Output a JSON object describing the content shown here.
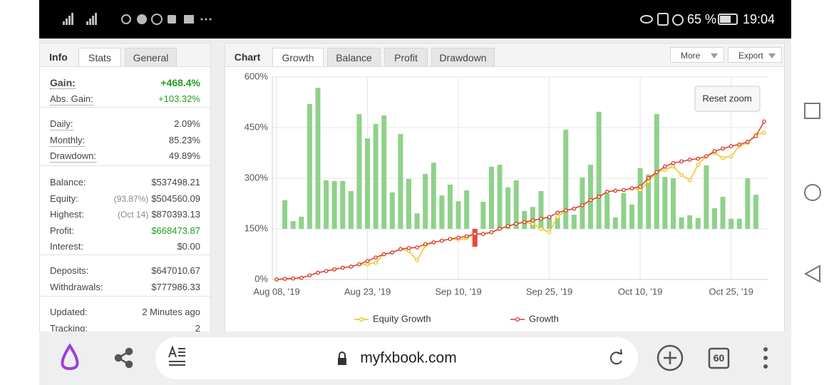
{
  "status_bar": {
    "battery": "65 %",
    "time": "19:04"
  },
  "info_panel": {
    "tabs": [
      "Info",
      "Stats",
      "General"
    ],
    "groups": [
      [
        {
          "label": "Gain:",
          "value": "+468.4%",
          "color": "#1e9e1e"
        },
        {
          "label": "Abs. Gain:",
          "value": "+103.32%",
          "color": "#1e9e1e"
        }
      ],
      [
        {
          "label": "Daily:",
          "value": "2.09%"
        },
        {
          "label": "Monthly:",
          "value": "85.23%"
        },
        {
          "label": "Drawdown:",
          "value": "49.89%"
        }
      ],
      [
        {
          "label": "Balance:",
          "value": "$537498.21"
        },
        {
          "label": "Equity:",
          "note": "(93.87%)",
          "value": "$504560.09"
        },
        {
          "label": "Highest:",
          "note": "(Oct 14)",
          "value": "$870393.13"
        },
        {
          "label": "Profit:",
          "value": "$668473.87",
          "color": "#1e9e1e"
        },
        {
          "label": "Interest:",
          "value": "$0.00"
        }
      ],
      [
        {
          "label": "Deposits:",
          "value": "$647010.67"
        },
        {
          "label": "Withdrawals:",
          "value": "$777986.33"
        }
      ],
      [
        {
          "label": "Updated:",
          "value": "2 Minutes ago"
        },
        {
          "label": "Tracking:",
          "value": "2"
        }
      ]
    ]
  },
  "chart_panel": {
    "tabs": [
      "Chart",
      "Growth",
      "Balance",
      "Profit",
      "Drawdown"
    ],
    "buttons": [
      "More",
      "Export"
    ],
    "reset_zoom": "Reset zoom"
  },
  "chart_data": {
    "type": "line",
    "categories": [
      "Aug 08, '19",
      null,
      null,
      null,
      null,
      null,
      null,
      null,
      null,
      null,
      null,
      "Aug 23, '19",
      null,
      null,
      null,
      null,
      null,
      null,
      null,
      null,
      null,
      null,
      "Sep 10, '19",
      null,
      null,
      null,
      null,
      null,
      null,
      null,
      null,
      null,
      null,
      "Sep 25, '19",
      null,
      null,
      null,
      null,
      null,
      null,
      null,
      null,
      null,
      null,
      "Oct 10, '19",
      null,
      null,
      null,
      null,
      null,
      null,
      null,
      null,
      null,
      null,
      "Oct 25, '19",
      null,
      null,
      null,
      null
    ],
    "ylim": [
      0,
      600
    ],
    "yticks": [
      {
        "value": 0,
        "label": "0%"
      },
      {
        "value": 150,
        "label": "150%"
      },
      {
        "value": 300,
        "label": "300%"
      },
      {
        "value": 450,
        "label": "450%"
      },
      {
        "value": 600,
        "label": "600%"
      }
    ],
    "y2lim": [
      -150,
      450
    ],
    "grid": true,
    "series": [
      {
        "type": "bar",
        "axis": "y2",
        "color": "#8fd18a",
        "negative_color": "#e8483b",
        "values": [
          null,
          85,
          23,
          36,
          370,
          418,
          144,
          142,
          142,
          112,
          340,
          268,
          311,
          336,
          108,
          281,
          148,
          46,
          163,
          196,
          99,
          131,
          82,
          114,
          -53,
          80,
          184,
          190,
          123,
          144,
          53,
          65,
          112,
          34,
          34,
          294,
          42,
          152,
          190,
          347,
          104,
          34,
          106,
          72,
          180,
          161,
          340,
          154,
          150,
          34,
          40,
          32,
          188,
          61,
          95,
          30,
          30,
          150,
          101,
          null
        ]
      },
      {
        "name": "Equity Growth",
        "color": "#f0c419",
        "values": [
          0,
          2,
          3,
          5,
          12,
          20,
          25,
          30,
          35,
          38,
          45,
          45,
          50,
          75,
          80,
          90,
          85,
          57,
          100,
          110,
          115,
          120,
          118,
          122,
          135,
          135,
          140,
          150,
          158,
          165,
          170,
          165,
          150,
          140,
          185,
          205,
          210,
          220,
          235,
          245,
          260,
          263,
          265,
          270,
          265,
          290,
          318,
          325,
          335,
          310,
          294,
          340,
          365,
          375,
          360,
          365,
          395,
          405,
          430,
          435
        ]
      },
      {
        "name": "Growth",
        "color": "#d83b2e",
        "values": [
          0,
          2,
          3,
          5,
          12,
          20,
          25,
          30,
          35,
          38,
          45,
          55,
          65,
          75,
          80,
          90,
          93,
          95,
          105,
          110,
          115,
          120,
          124,
          128,
          135,
          135,
          140,
          150,
          158,
          165,
          170,
          175,
          180,
          185,
          198,
          205,
          210,
          220,
          235,
          245,
          260,
          263,
          265,
          270,
          275,
          300,
          318,
          335,
          345,
          350,
          355,
          358,
          365,
          380,
          388,
          395,
          400,
          408,
          425,
          468
        ]
      }
    ]
  },
  "browser_bar": {
    "url": "myfxbook.com",
    "tab_count": 60
  }
}
